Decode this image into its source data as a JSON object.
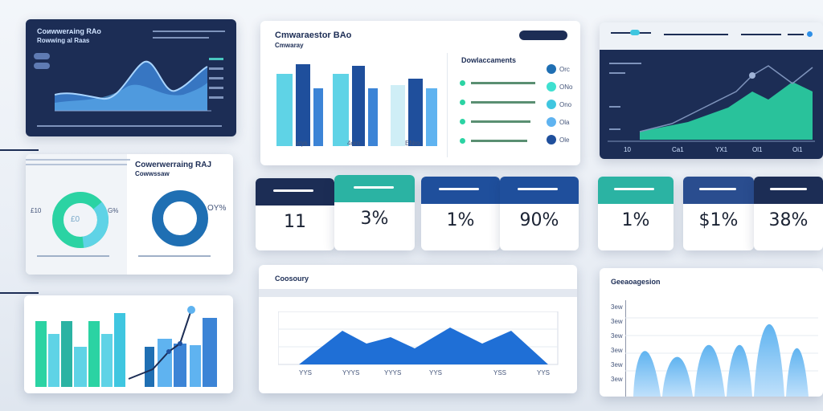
{
  "panel_top_left": {
    "title": "Coᴎwwerᴀing RAo",
    "subtitle": "Rowwing al Raas"
  },
  "panel_top_center": {
    "title": "Cmwaraestor BAo",
    "subtitle": "Cmwaray",
    "tick_labels": [
      "vrys",
      "4oro",
      "ENro"
    ]
  },
  "legend_list": {
    "title": "Dowlaccaments",
    "items": [
      "Orc",
      "ONo",
      "Ono",
      "Ola",
      "Ole"
    ]
  },
  "panel_top_right": {
    "tick_labels": [
      "10",
      "Ca1",
      "YX1",
      "Ol1",
      "Oi1"
    ]
  },
  "donut_panel": {
    "title": "Cowerwerraing RAJ",
    "subtitle": "Cowwssaw",
    "label_left": "£10",
    "label_right": "G%",
    "donut1_value": "£0",
    "donut2_value": "OY%"
  },
  "kpis": [
    {
      "value": "11",
      "color": "#1c2d55"
    },
    {
      "value": "3%",
      "color": "#2bb3a3"
    },
    {
      "value": "1%",
      "color": "#1f4f9c"
    },
    {
      "value": "90%",
      "color": "#1f4f9c"
    },
    {
      "value": "1%",
      "color": "#2bb3a3"
    },
    {
      "value": "$1%",
      "color": "#2a4d8f"
    },
    {
      "value": "38%",
      "color": "#1c2d55"
    }
  ],
  "panel_bottom_center": {
    "title": "Coosoury",
    "tick_labels": [
      "YYS",
      "YYYS",
      "YYYS",
      "YYS",
      "YSS",
      "YYS"
    ]
  },
  "panel_bottom_right": {
    "title": "Geeaoagesion",
    "axis_labels": [
      "3ew",
      "3ew",
      "3ew",
      "3ew",
      "3ew",
      "3ew"
    ]
  }
}
